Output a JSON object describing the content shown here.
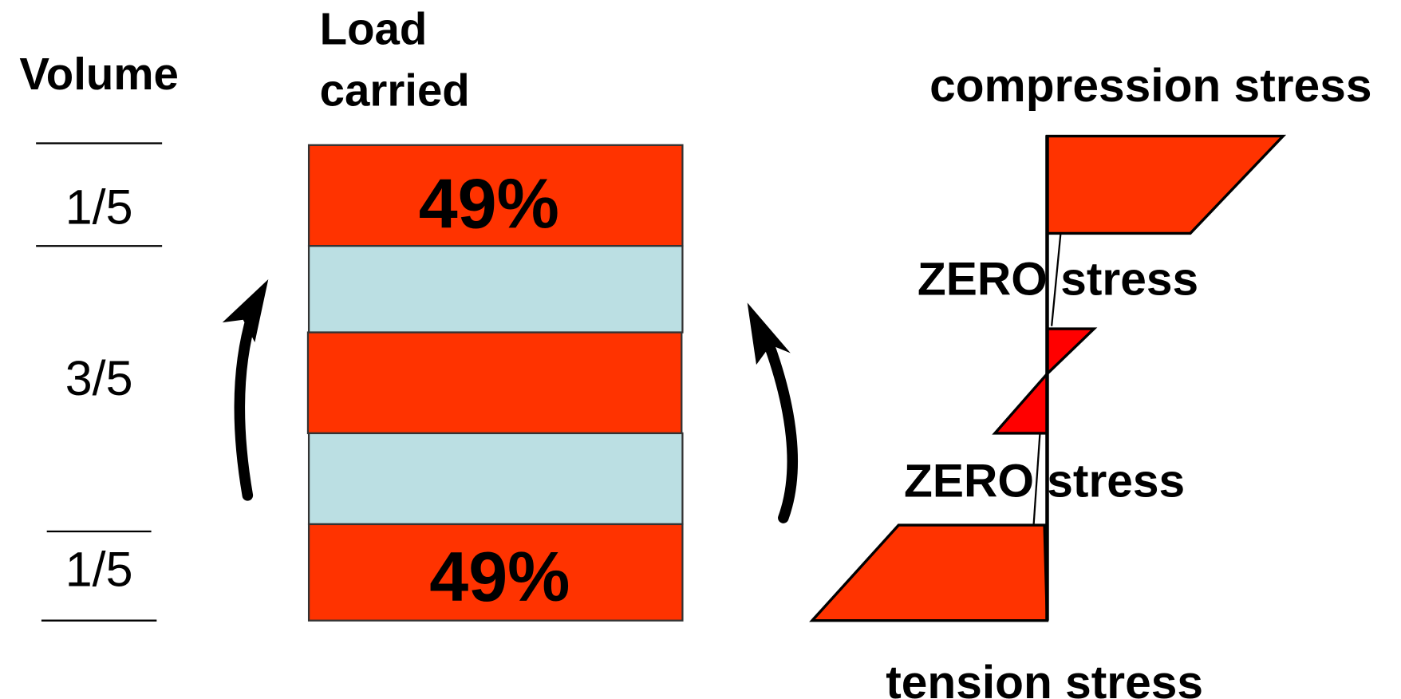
{
  "headers": {
    "volume": "Volume",
    "load": [
      "Load",
      "carried"
    ]
  },
  "volume_fractions": [
    "1/5",
    "3/5",
    "1/5"
  ],
  "load_labels": [
    "49%",
    "49%"
  ],
  "stress_labels": {
    "compression": "compression stress",
    "zero": [
      "ZERO stress",
      "ZERO stress"
    ],
    "tension": "tension stress"
  }
}
